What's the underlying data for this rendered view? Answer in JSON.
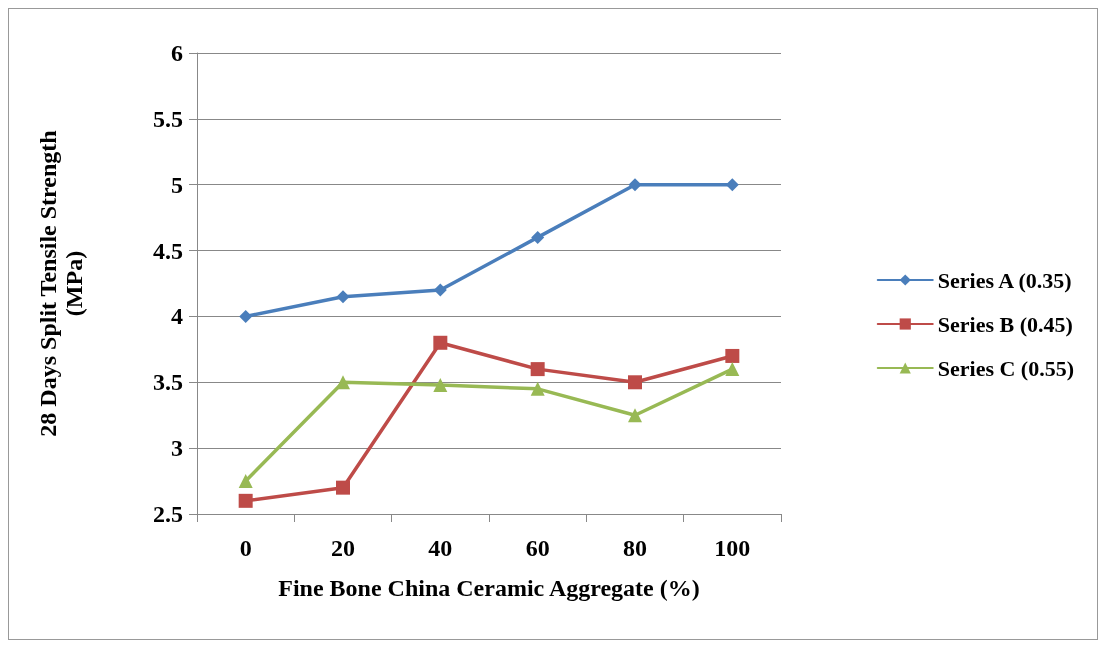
{
  "chart_data": {
    "type": "line",
    "xlabel": "Fine Bone China Ceramic Aggregate (%)",
    "ylabel": "28 Days Split Tensile Strength (MPa)",
    "categories": [
      "0",
      "20",
      "40",
      "60",
      "80",
      "100"
    ],
    "series": [
      {
        "name": "Series A (0.35)",
        "color": "#4a7ebb",
        "marker": "diamond",
        "values": [
          4,
          4.15,
          4.2,
          4.6,
          5,
          5
        ]
      },
      {
        "name": "Series B (0.45)",
        "color": "#be4b48",
        "marker": "square",
        "values": [
          2.6,
          2.7,
          3.8,
          3.6,
          3.5,
          3.7
        ]
      },
      {
        "name": "Series C (0.55)",
        "color": "#98b954",
        "marker": "triangle",
        "values": [
          2.75,
          3.5,
          3.48,
          3.45,
          3.25,
          3.6
        ]
      }
    ],
    "ylim": [
      2.5,
      6
    ],
    "yticks": [
      2.5,
      3,
      3.5,
      4,
      4.5,
      5,
      5.5,
      6
    ],
    "grid": "y",
    "legend": "right",
    "line_style": "solid"
  }
}
